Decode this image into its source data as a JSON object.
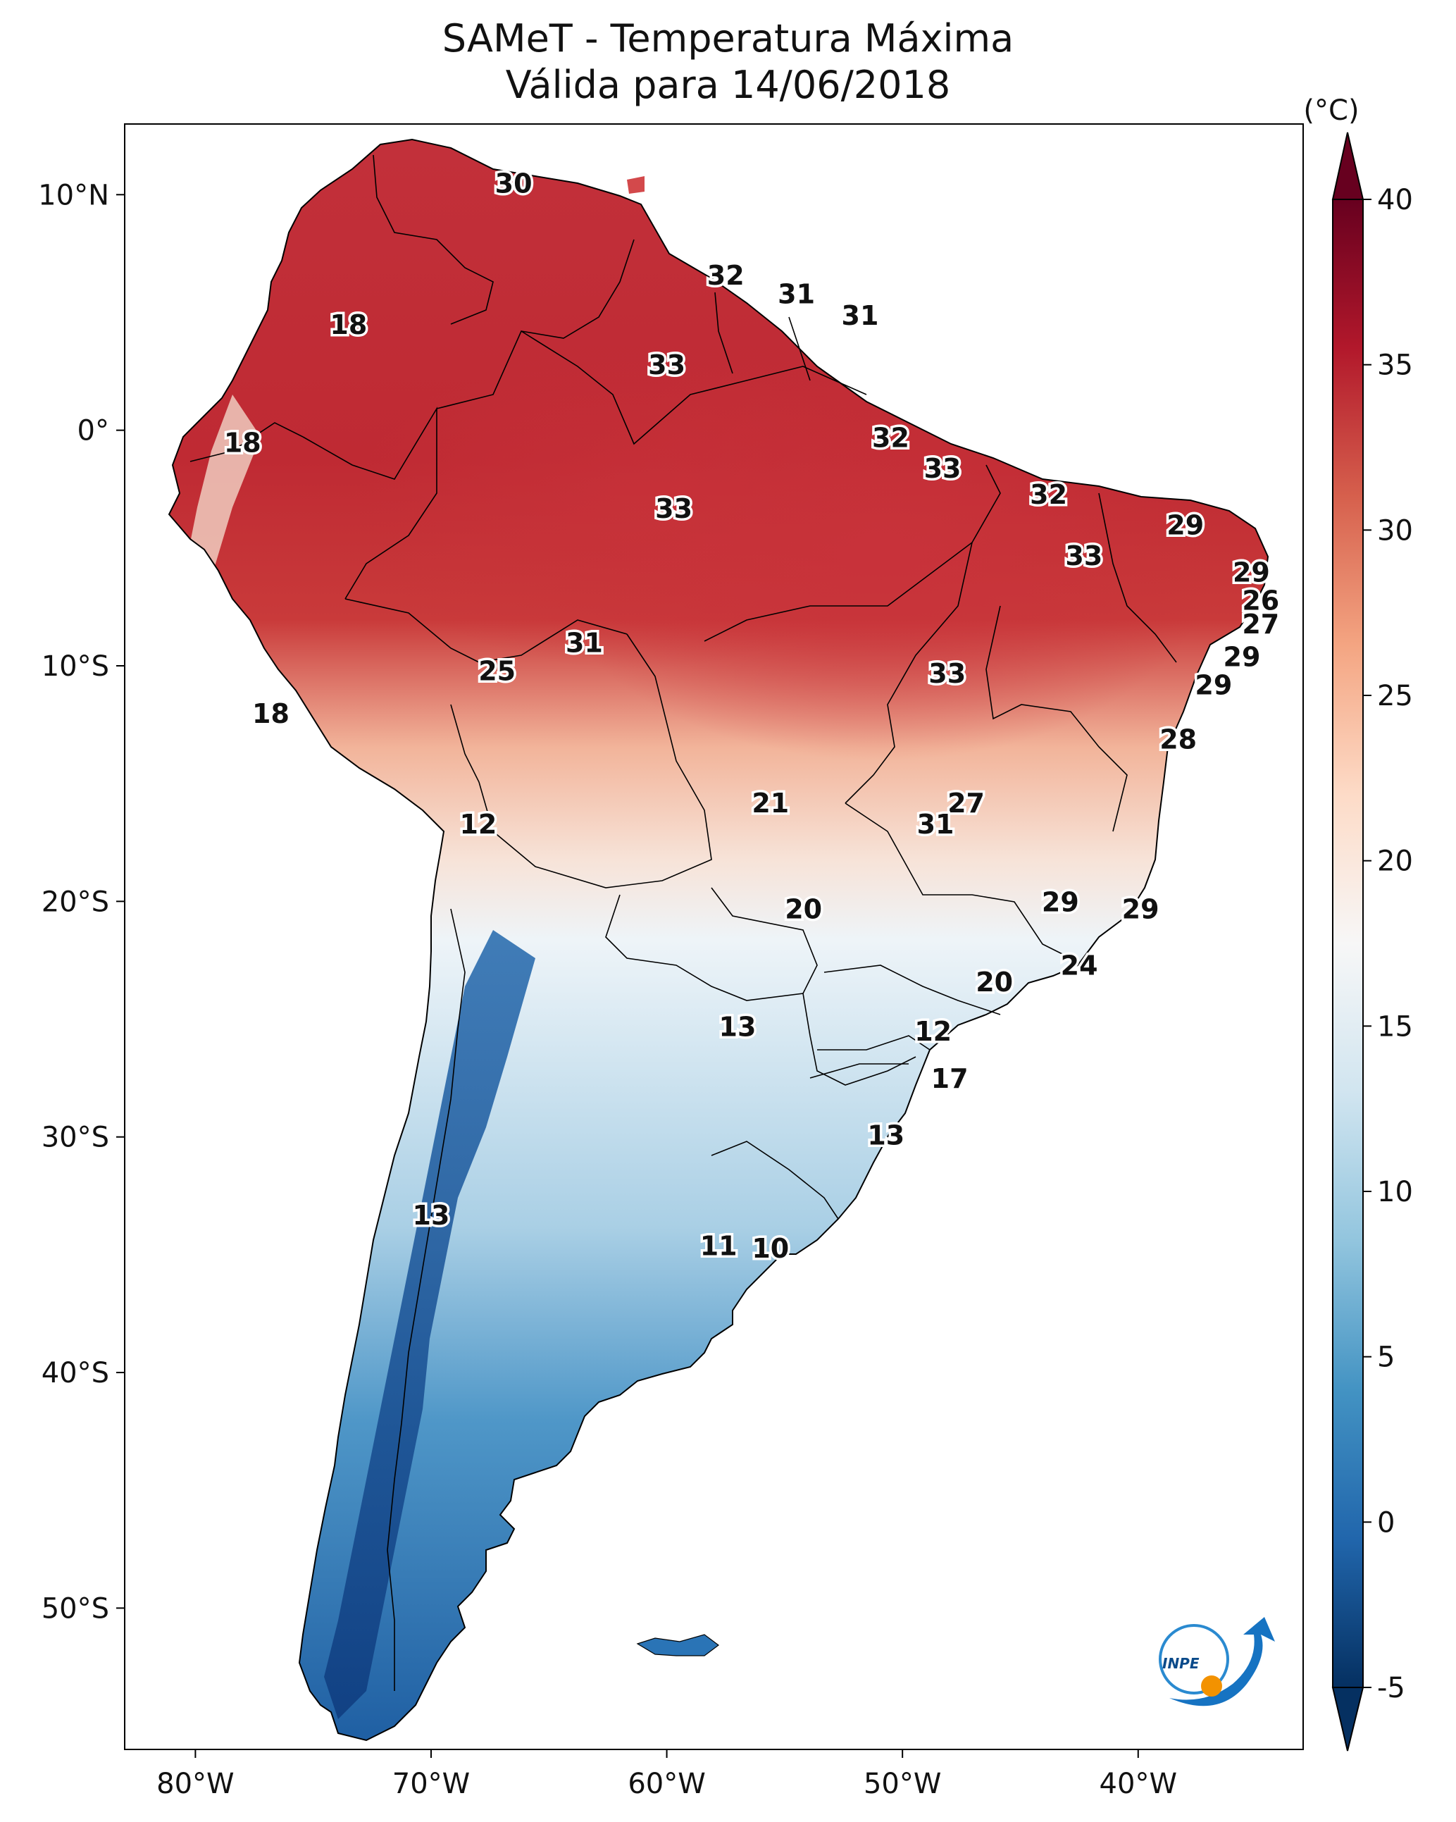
{
  "title": {
    "line1": "SAMeT - Temperatura Máxima",
    "line2": "Válida para 14/06/2018"
  },
  "colorbar": {
    "unit": "(°C)",
    "min": -5,
    "max": 40,
    "ticks": [
      "40",
      "35",
      "30",
      "25",
      "20",
      "15",
      "10",
      "5",
      "0",
      "-5"
    ],
    "colors": [
      "#053061",
      "#2166ac",
      "#4393c3",
      "#92c5de",
      "#d1e5f0",
      "#f7f7f7",
      "#fddbc7",
      "#f4a582",
      "#d6604d",
      "#b2182b",
      "#67001f"
    ]
  },
  "axes": {
    "lon_ticks": [
      "80°W",
      "70°W",
      "60°W",
      "50°W",
      "40°W"
    ],
    "lat_ticks": [
      "10°N",
      "0°",
      "10°S",
      "20°S",
      "30°S",
      "40°S",
      "50°S"
    ],
    "lon_range": [
      -83,
      -33
    ],
    "lat_range": [
      -56,
      13
    ]
  },
  "labels": [
    {
      "text": "30",
      "lon": -66.5,
      "lat": 10.5
    },
    {
      "text": "32",
      "lon": -57.5,
      "lat": 6.6
    },
    {
      "text": "31",
      "lon": -54.5,
      "lat": 5.8
    },
    {
      "text": "31",
      "lon": -51.8,
      "lat": 4.9
    },
    {
      "text": "18",
      "lon": -73.5,
      "lat": 4.5
    },
    {
      "text": "33",
      "lon": -60.0,
      "lat": 2.8
    },
    {
      "text": "18",
      "lon": -78.0,
      "lat": -0.5
    },
    {
      "text": "32",
      "lon": -50.5,
      "lat": -0.3
    },
    {
      "text": "33",
      "lon": -48.3,
      "lat": -1.6
    },
    {
      "text": "33",
      "lon": -59.7,
      "lat": -3.3
    },
    {
      "text": "32",
      "lon": -43.8,
      "lat": -2.7
    },
    {
      "text": "29",
      "lon": -38.0,
      "lat": -4.0
    },
    {
      "text": "33",
      "lon": -42.3,
      "lat": -5.3
    },
    {
      "text": "29",
      "lon": -35.2,
      "lat": -6.0
    },
    {
      "text": "26",
      "lon": -34.8,
      "lat": -7.2
    },
    {
      "text": "27",
      "lon": -34.8,
      "lat": -8.2
    },
    {
      "text": "31",
      "lon": -63.5,
      "lat": -9.0
    },
    {
      "text": "25",
      "lon": -67.2,
      "lat": -10.2
    },
    {
      "text": "33",
      "lon": -48.1,
      "lat": -10.3
    },
    {
      "text": "29",
      "lon": -35.6,
      "lat": -9.6
    },
    {
      "text": "29",
      "lon": -36.8,
      "lat": -10.8
    },
    {
      "text": "18",
      "lon": -76.8,
      "lat": -12.0
    },
    {
      "text": "28",
      "lon": -38.3,
      "lat": -13.1
    },
    {
      "text": "21",
      "lon": -55.6,
      "lat": -15.8
    },
    {
      "text": "27",
      "lon": -47.3,
      "lat": -15.8
    },
    {
      "text": "12",
      "lon": -68.0,
      "lat": -16.7
    },
    {
      "text": "31",
      "lon": -48.6,
      "lat": -16.7
    },
    {
      "text": "29",
      "lon": -43.3,
      "lat": -20.0
    },
    {
      "text": "20",
      "lon": -54.2,
      "lat": -20.3
    },
    {
      "text": "29",
      "lon": -39.9,
      "lat": -20.3
    },
    {
      "text": "24",
      "lon": -42.5,
      "lat": -22.7
    },
    {
      "text": "20",
      "lon": -46.1,
      "lat": -23.4
    },
    {
      "text": "13",
      "lon": -57.0,
      "lat": -25.3
    },
    {
      "text": "12",
      "lon": -48.7,
      "lat": -25.5
    },
    {
      "text": "17",
      "lon": -48.0,
      "lat": -27.5
    },
    {
      "text": "13",
      "lon": -50.7,
      "lat": -29.9
    },
    {
      "text": "13",
      "lon": -70.0,
      "lat": -33.3
    },
    {
      "text": "11",
      "lon": -57.8,
      "lat": -34.6
    },
    {
      "text": "10",
      "lon": -55.6,
      "lat": -34.7
    }
  ],
  "logo": {
    "text": "INPE"
  }
}
